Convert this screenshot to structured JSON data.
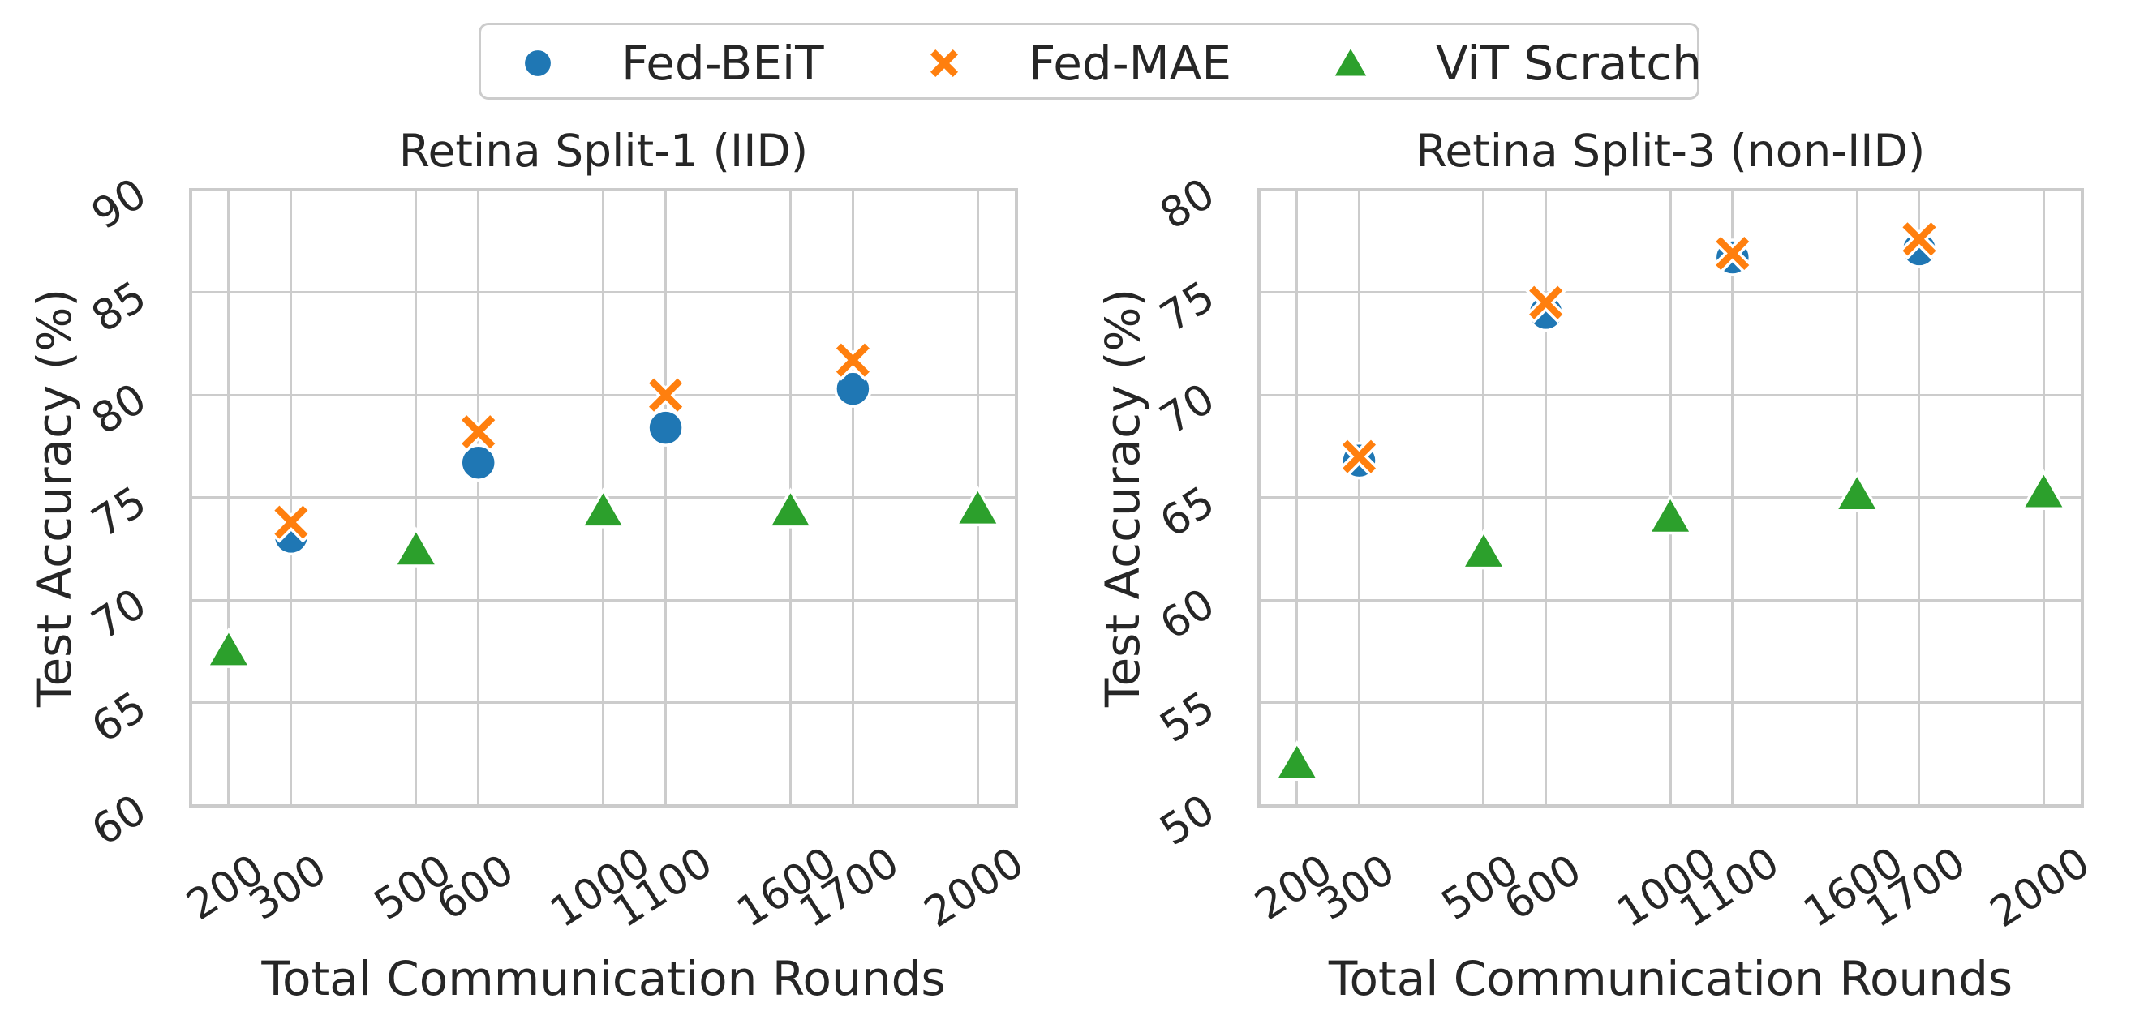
{
  "figure": {
    "background": "#ffffff",
    "text_color": "#262626",
    "grid_color": "#cccccc",
    "series_colors": {
      "fed_beit": "#1f77b4",
      "fed_mae": "#ff7f0e",
      "vit_scratch": "#2ca02c"
    }
  },
  "legend": {
    "position": "top-center",
    "items": [
      {
        "label": "Fed-BEiT",
        "marker": "circle-icon",
        "color": "#1f77b4"
      },
      {
        "label": "Fed-MAE",
        "marker": "x-icon",
        "color": "#ff7f0e"
      },
      {
        "label": "ViT Scratch",
        "marker": "triangle-icon",
        "color": "#2ca02c"
      }
    ]
  },
  "chart_data": [
    {
      "type": "scatter",
      "title": "Retina Split-1 (IID)",
      "xlabel": "Total Communication Rounds",
      "ylabel": "Test Accuracy (%)",
      "x_tick_labels": [
        "200",
        "300",
        "500",
        "600",
        "1000",
        "1100",
        "1600",
        "1700",
        "2000"
      ],
      "x_tick_positions": [
        0,
        1,
        3,
        4,
        6,
        7,
        9,
        10,
        12
      ],
      "xlim_positions": [
        -0.61,
        12.62
      ],
      "ylim": [
        60,
        90
      ],
      "y_ticks": [
        60,
        65,
        70,
        75,
        80,
        85,
        90
      ],
      "grid": true,
      "series": [
        {
          "name": "Fed-BEiT",
          "marker": "circle",
          "color": "#1f77b4",
          "x": [
            300,
            600,
            1100,
            1700
          ],
          "y": [
            73.1,
            76.7,
            78.4,
            80.3
          ]
        },
        {
          "name": "Fed-MAE",
          "marker": "x",
          "color": "#ff7f0e",
          "x": [
            300,
            600,
            1100,
            1700
          ],
          "y": [
            73.8,
            78.2,
            80.0,
            81.7
          ]
        },
        {
          "name": "ViT Scratch",
          "marker": "triangle",
          "color": "#2ca02c",
          "x": [
            200,
            500,
            1000,
            1600,
            2000
          ],
          "y": [
            67.6,
            72.5,
            74.4,
            74.4,
            74.5
          ]
        }
      ]
    },
    {
      "type": "scatter",
      "title": "Retina Split-3 (non-IID)",
      "xlabel": "Total Communication Rounds",
      "ylabel": "Test Accuracy (%)",
      "x_tick_labels": [
        "200",
        "300",
        "500",
        "600",
        "1000",
        "1100",
        "1600",
        "1700",
        "2000"
      ],
      "x_tick_positions": [
        0,
        1,
        3,
        4,
        6,
        7,
        9,
        10,
        12
      ],
      "xlim_positions": [
        -0.61,
        12.62
      ],
      "ylim": [
        50,
        80
      ],
      "y_ticks": [
        50,
        55,
        60,
        65,
        70,
        75,
        80
      ],
      "grid": true,
      "series": [
        {
          "name": "Fed-BEiT",
          "marker": "circle",
          "color": "#1f77b4",
          "x": [
            300,
            600,
            1100,
            1700
          ],
          "y": [
            66.8,
            74.0,
            76.7,
            77.1
          ]
        },
        {
          "name": "Fed-MAE",
          "marker": "x",
          "color": "#ff7f0e",
          "x": [
            300,
            600,
            1100,
            1700
          ],
          "y": [
            67.0,
            74.5,
            76.9,
            77.6
          ]
        },
        {
          "name": "ViT Scratch",
          "marker": "triangle",
          "color": "#2ca02c",
          "x": [
            200,
            500,
            1000,
            1600,
            2000
          ],
          "y": [
            52.1,
            62.4,
            64.1,
            65.2,
            65.3
          ]
        }
      ]
    }
  ]
}
